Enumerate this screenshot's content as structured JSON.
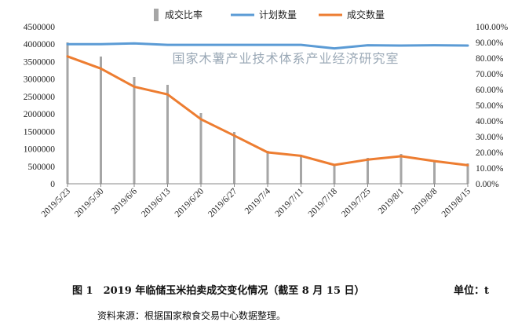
{
  "chart_data": {
    "type": "bar+line",
    "categories": [
      "2019/5/23",
      "2019/5/30",
      "2019/6/6",
      "2019/6/13",
      "2019/6/20",
      "2019/6/27",
      "2019/7/4",
      "2019/7/11",
      "2019/7/18",
      "2019/7/25",
      "2019/8/1",
      "2019/8/8",
      "2019/8/15"
    ],
    "series": [
      {
        "name": "成交比率",
        "type": "bar",
        "axis": "right",
        "color": "#a6a6a6",
        "values": [
          0.9,
          0.81,
          0.68,
          0.63,
          0.45,
          0.33,
          0.21,
          0.185,
          0.12,
          0.165,
          0.19,
          0.15,
          0.13
        ]
      },
      {
        "name": "计划数量",
        "type": "line",
        "axis": "left",
        "color": "#5b9bd5",
        "values": [
          4000000,
          4000000,
          4020000,
          3980000,
          3980000,
          3980000,
          3980000,
          3980000,
          3880000,
          3970000,
          3960000,
          3970000,
          3960000
        ]
      },
      {
        "name": "成交数量",
        "type": "line",
        "axis": "left",
        "color": "#ed7d31",
        "values": [
          3650000,
          3300000,
          2780000,
          2560000,
          1850000,
          1380000,
          900000,
          800000,
          540000,
          690000,
          790000,
          650000,
          530000
        ]
      }
    ],
    "yleft": {
      "min": 0,
      "max": 4500000,
      "ticks": [
        "0",
        "500000",
        "1000000",
        "1500000",
        "2000000",
        "2500000",
        "3000000",
        "3500000",
        "4000000",
        "4500000"
      ]
    },
    "yright": {
      "min": 0,
      "max": 1.0,
      "ticks": [
        "0.00%",
        "10.00%",
        "20.00%",
        "30.00%",
        "40.00%",
        "50.00%",
        "60.00%",
        "70.00%",
        "80.00%",
        "90.00%",
        "100.00%"
      ]
    },
    "legend_position": "top",
    "grid": false
  },
  "watermark": "国家木薯产业技术体系产业经济研究室",
  "caption": {
    "title": "图 1　2019 年临储玉米拍卖成交变化情况（截至 8 月 15 日）",
    "unit": "单位：t"
  },
  "source": "资料来源：根据国家粮食交易中心数据整理。"
}
